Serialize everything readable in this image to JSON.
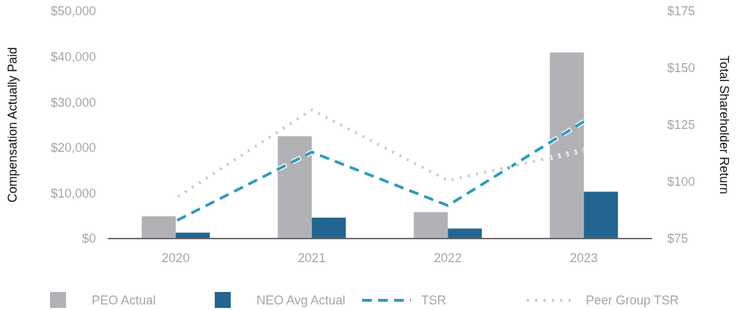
{
  "chart_data": {
    "type": "bar",
    "ylabel": "Compensation Actually Paid",
    "y2label": "Total Shareholder Return",
    "categories": [
      "2020",
      "2021",
      "2022",
      "2023"
    ],
    "series": [
      {
        "name": "PEO Actual",
        "color": "#b1b2b6",
        "values": [
          4900,
          22500,
          5800,
          40900
        ]
      },
      {
        "name": "NEO Avg Actual",
        "color": "#236591",
        "values": [
          1300,
          4600,
          2200,
          10300
        ]
      },
      {
        "name": "TSR",
        "type": "line",
        "axis": "y2",
        "color": "#2e9bbd",
        "line_style": "dashed",
        "values": [
          82.7,
          113.0,
          89.5,
          126.5
        ]
      },
      {
        "name": "Peer Group TSR",
        "type": "line",
        "axis": "y2",
        "color": "#c8c9cb",
        "line_style": "dotted",
        "values": [
          92.8,
          131.6,
          100.5,
          113.8
        ]
      }
    ],
    "ylim": [
      0,
      50000
    ],
    "yticks": [
      {
        "value": 0,
        "label": "$0"
      },
      {
        "value": 10000,
        "label": "$10,000"
      },
      {
        "value": 20000,
        "label": "$20,000"
      },
      {
        "value": 30000,
        "label": "$30,000"
      },
      {
        "value": 40000,
        "label": "$40,000"
      },
      {
        "value": 50000,
        "label": "$50,000"
      }
    ],
    "y2lim": [
      75,
      175
    ],
    "y2ticks": [
      {
        "value": 75,
        "label": "$75"
      },
      {
        "value": 100,
        "label": "$100"
      },
      {
        "value": 125,
        "label": "$125"
      },
      {
        "value": 150,
        "label": "$150"
      },
      {
        "value": 175,
        "label": "$175"
      }
    ],
    "legend": "bottom",
    "grid": false
  }
}
